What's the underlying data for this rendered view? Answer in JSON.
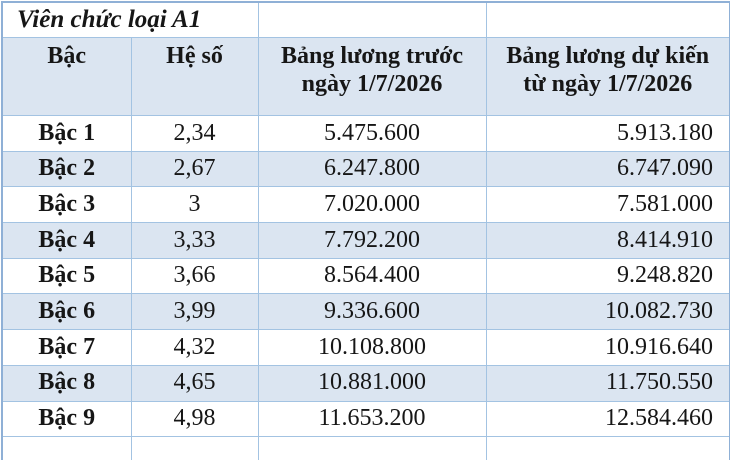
{
  "table": {
    "title": "Viên chức loại A1",
    "columns": [
      "Bậc",
      "Hệ số",
      "Bảng lương trước ngày 1/7/2026",
      "Bảng lương dự kiến từ ngày 1/7/2026"
    ],
    "rows": [
      {
        "level": "Bậc 1",
        "coefficient": "2,34",
        "salary_before": "5.475.600",
        "salary_after": "5.913.180"
      },
      {
        "level": "Bậc 2",
        "coefficient": "2,67",
        "salary_before": "6.247.800",
        "salary_after": "6.747.090"
      },
      {
        "level": "Bậc 3",
        "coefficient": "3",
        "salary_before": "7.020.000",
        "salary_after": "7.581.000"
      },
      {
        "level": "Bậc 4",
        "coefficient": "3,33",
        "salary_before": "7.792.200",
        "salary_after": "8.414.910"
      },
      {
        "level": "Bậc 5",
        "coefficient": "3,66",
        "salary_before": "8.564.400",
        "salary_after": "9.248.820"
      },
      {
        "level": "Bậc 6",
        "coefficient": "3,99",
        "salary_before": "9.336.600",
        "salary_after": "10.082.730"
      },
      {
        "level": "Bậc 7",
        "coefficient": "4,32",
        "salary_before": "10.108.800",
        "salary_after": "10.916.640"
      },
      {
        "level": "Bậc 8",
        "coefficient": "4,65",
        "salary_before": "10.881.000",
        "salary_after": "11.750.550"
      },
      {
        "level": "Bậc 9",
        "coefficient": "4,98",
        "salary_before": "11.653.200",
        "salary_after": "12.584.460"
      }
    ]
  },
  "colors": {
    "band_blue": "#dbe5f1",
    "border_blue": "#a3c3e2",
    "outer_border_blue": "#8fb0d6",
    "text": "#161616",
    "background": "#ffffff"
  }
}
